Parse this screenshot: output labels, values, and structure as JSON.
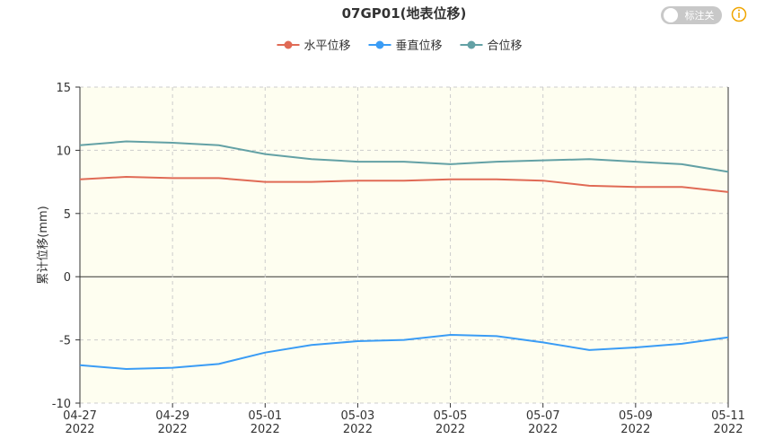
{
  "chart_data": {
    "type": "line",
    "title": "07GP01(地表位移)",
    "y_label": "累计位移(mm)",
    "toggle_label": "标注关",
    "categories": [
      "04-27\n2022",
      null,
      "04-29\n2022",
      null,
      "05-01\n2022",
      null,
      "05-03\n2022",
      null,
      "05-05\n2022",
      null,
      "05-07\n2022",
      null,
      "05-09\n2022",
      null,
      "05-11\n2022"
    ],
    "series": [
      {
        "name": "水平位移",
        "color": "#e06a55",
        "values": [
          7.7,
          7.9,
          7.8,
          7.8,
          7.5,
          7.5,
          7.6,
          7.6,
          7.7,
          7.7,
          7.6,
          7.2,
          7.1,
          7.1,
          6.7
        ]
      },
      {
        "name": "垂直位移",
        "color": "#3a9cf5",
        "values": [
          -7.0,
          -7.3,
          -7.2,
          -6.9,
          -6.0,
          -5.4,
          -5.1,
          -5.0,
          -4.6,
          -4.7,
          -5.2,
          -5.8,
          -5.6,
          -5.3,
          -4.8
        ]
      },
      {
        "name": "合位移",
        "color": "#63a1a5",
        "values": [
          10.4,
          10.7,
          10.6,
          10.4,
          9.7,
          9.3,
          9.1,
          9.1,
          8.9,
          9.1,
          9.2,
          9.3,
          9.1,
          8.9,
          8.3
        ]
      }
    ],
    "ylim": [
      -10,
      15
    ],
    "yticks": [
      -10,
      -5,
      0,
      5,
      10,
      15
    ],
    "grid": true
  }
}
